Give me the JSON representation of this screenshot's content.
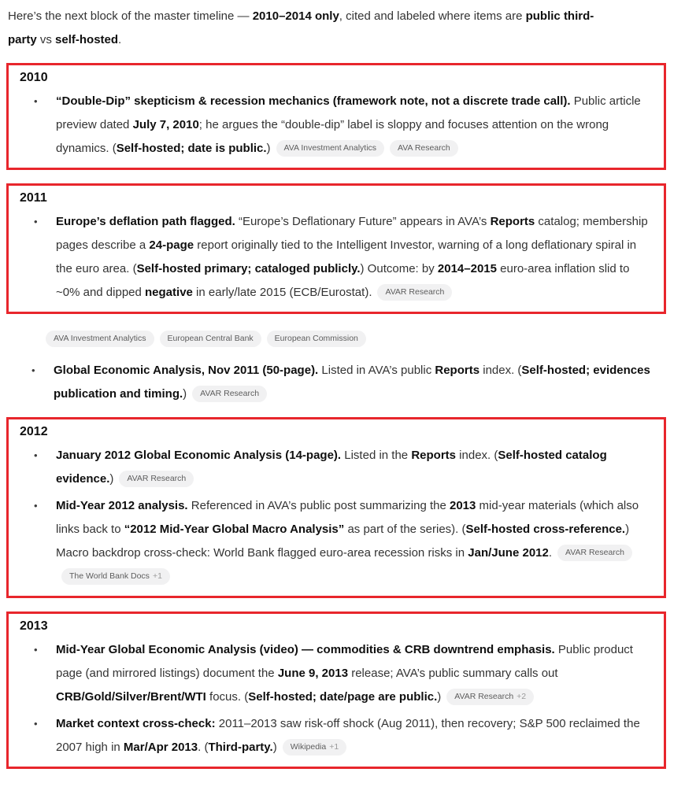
{
  "colors": {
    "box_border": "#e8262c",
    "badge_bg": "#f1f1f2",
    "badge_text": "#5d5d5d"
  },
  "blocks": [
    {
      "type": "paragraph",
      "runs": [
        {
          "t": "Here’s the next block of the master timeline — ",
          "b": false
        },
        {
          "t": "2010–2014 only",
          "b": true
        },
        {
          "t": ", cited and labeled where items are ",
          "b": false
        },
        {
          "t": "public third-party",
          "b": true
        },
        {
          "t": " vs ",
          "b": false
        },
        {
          "t": "self-hosted",
          "b": true
        },
        {
          "t": ".",
          "b": false
        }
      ]
    },
    {
      "type": "yearbox",
      "year": "2010",
      "items": [
        {
          "runs": [
            {
              "t": "“Double-Dip” skepticism & recession mechanics (framework note, not a discrete trade call).",
              "b": true
            },
            {
              "t": " Public article preview dated ",
              "b": false
            },
            {
              "t": "July 7, 2010",
              "b": true
            },
            {
              "t": "; he argues the “double-dip” label is sloppy and focuses attention on the wrong dynamics. (",
              "b": false
            },
            {
              "t": "Self-hosted; date is public.",
              "b": true
            },
            {
              "t": ")",
              "b": false
            }
          ],
          "badges": [
            {
              "label": "AVA Investment Analytics"
            },
            {
              "label": "AVA Research"
            }
          ]
        }
      ]
    },
    {
      "type": "yearbox",
      "year": "2011",
      "items": [
        {
          "runs": [
            {
              "t": "Europe’s deflation path flagged.",
              "b": true
            },
            {
              "t": " “Europe’s Deflationary Future” appears in AVA’s ",
              "b": false
            },
            {
              "t": "Reports",
              "b": true
            },
            {
              "t": " catalog; membership pages describe a ",
              "b": false
            },
            {
              "t": "24-page",
              "b": true
            },
            {
              "t": " report originally tied to the Intelligent Investor, warning of a long deflationary spiral in the euro area. (",
              "b": false
            },
            {
              "t": "Self-hosted primary; cataloged publicly.",
              "b": true
            },
            {
              "t": ") Outcome: by ",
              "b": false
            },
            {
              "t": "2014–2015",
              "b": true
            },
            {
              "t": " euro-area inflation slid to ~0% and dipped ",
              "b": false
            },
            {
              "t": "negative",
              "b": true
            },
            {
              "t": " in early/late 2015 (ECB/Eurostat).",
              "b": false
            }
          ],
          "badges": [
            {
              "label": "AVAR Research"
            }
          ]
        }
      ]
    },
    {
      "type": "badges-row",
      "badges": [
        {
          "label": "AVA Investment Analytics"
        },
        {
          "label": "European Central Bank"
        },
        {
          "label": "European Commission"
        }
      ]
    },
    {
      "type": "bullets",
      "items": [
        {
          "runs": [
            {
              "t": "Global Economic Analysis, Nov 2011 (50-page).",
              "b": true
            },
            {
              "t": " Listed in AVA’s public ",
              "b": false
            },
            {
              "t": "Reports",
              "b": true
            },
            {
              "t": " index. (",
              "b": false
            },
            {
              "t": "Self-hosted; evidences publication and timing.",
              "b": true
            },
            {
              "t": ")",
              "b": false
            }
          ],
          "badges": [
            {
              "label": "AVAR Research"
            }
          ]
        }
      ]
    },
    {
      "type": "yearbox",
      "year": "2012",
      "items": [
        {
          "runs": [
            {
              "t": "January 2012 Global Economic Analysis (14-page).",
              "b": true
            },
            {
              "t": " Listed in the ",
              "b": false
            },
            {
              "t": "Reports",
              "b": true
            },
            {
              "t": " index. (",
              "b": false
            },
            {
              "t": "Self-hosted catalog evidence.",
              "b": true
            },
            {
              "t": ")",
              "b": false
            }
          ],
          "badges": [
            {
              "label": "AVAR Research"
            }
          ]
        },
        {
          "runs": [
            {
              "t": "Mid-Year 2012 analysis.",
              "b": true
            },
            {
              "t": " Referenced in AVA’s public post summarizing the ",
              "b": false
            },
            {
              "t": "2013",
              "b": true
            },
            {
              "t": " mid-year materials (which also links back to ",
              "b": false
            },
            {
              "t": "“2012 Mid-Year Global Macro Analysis”",
              "b": true
            },
            {
              "t": " as part of the series). (",
              "b": false
            },
            {
              "t": "Self-hosted cross-reference.",
              "b": true
            },
            {
              "t": ") Macro backdrop cross-check: World Bank flagged euro-area recession risks in ",
              "b": false
            },
            {
              "t": "Jan/June 2012",
              "b": true
            },
            {
              "t": ".",
              "b": false
            }
          ],
          "badges": [
            {
              "label": "AVAR Research"
            },
            {
              "label": "The World Bank Docs",
              "extra": "+1"
            }
          ]
        }
      ]
    },
    {
      "type": "yearbox",
      "year": "2013",
      "items": [
        {
          "runs": [
            {
              "t": "Mid-Year Global Economic Analysis (video) — commodities & CRB downtrend emphasis.",
              "b": true
            },
            {
              "t": " Public product page (and mirrored listings) document the ",
              "b": false
            },
            {
              "t": "June 9, 2013",
              "b": true
            },
            {
              "t": " release; AVA’s public summary calls out ",
              "b": false
            },
            {
              "t": "CRB/Gold/Silver/Brent/WTI",
              "b": true
            },
            {
              "t": " focus. (",
              "b": false
            },
            {
              "t": "Self-hosted; date/page are public.",
              "b": true
            },
            {
              "t": ")",
              "b": false
            }
          ],
          "badges": [
            {
              "label": "AVAR Research",
              "extra": "+2"
            }
          ]
        },
        {
          "runs": [
            {
              "t": "Market context cross-check:",
              "b": true
            },
            {
              "t": " 2011–2013 saw risk-off shock (Aug 2011), then recovery; S&P 500 reclaimed the 2007 high in ",
              "b": false
            },
            {
              "t": "Mar/Apr 2013",
              "b": true
            },
            {
              "t": ". (",
              "b": false
            },
            {
              "t": "Third-party.",
              "b": true
            },
            {
              "t": ")",
              "b": false
            }
          ],
          "badges": [
            {
              "label": "Wikipedia",
              "extra": "+1"
            }
          ]
        }
      ]
    }
  ]
}
